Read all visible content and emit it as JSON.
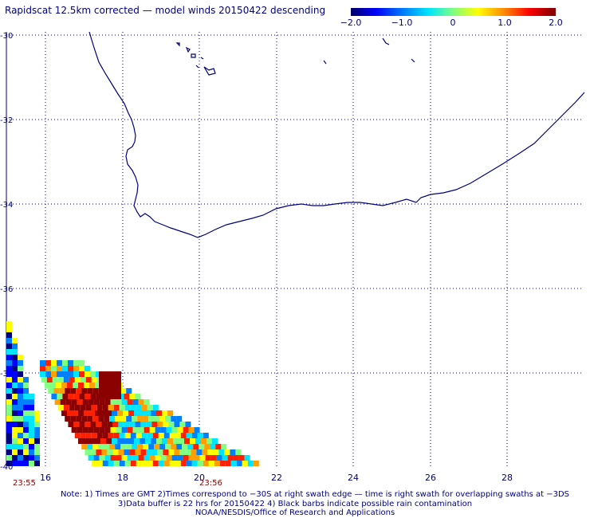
{
  "title": "Rapidscat 12.5km corrected — model winds 20150422 descending",
  "colorbar": {
    "labels": [
      "−2.0",
      "−1.0",
      "0",
      "1.0",
      "2.0"
    ],
    "values": [
      -2.0,
      -1.0,
      0,
      1.0,
      2.0
    ]
  },
  "lat_labels": [
    "-30",
    "-32",
    "-34",
    "-36",
    "-38",
    "-40"
  ],
  "lon_labels": [
    "16",
    "18",
    "20",
    "22",
    "24",
    "26",
    "28"
  ],
  "time_labels": [
    "23:55",
    "23:56"
  ],
  "notes": [
    "Note: 1) Times are GMT 2)Times correspond to −30S at right swath edge — time is right swath for overlapping swaths at −3DS",
    "3)Data buffer is 22 hrs for 20150422 4) Black barbs indicate possible rain contamination",
    "NOAA/NESDIS/Office of Research and Applications"
  ],
  "colors": {
    "text": "#000080",
    "coast": "#000080",
    "time": "#8b0000"
  }
}
